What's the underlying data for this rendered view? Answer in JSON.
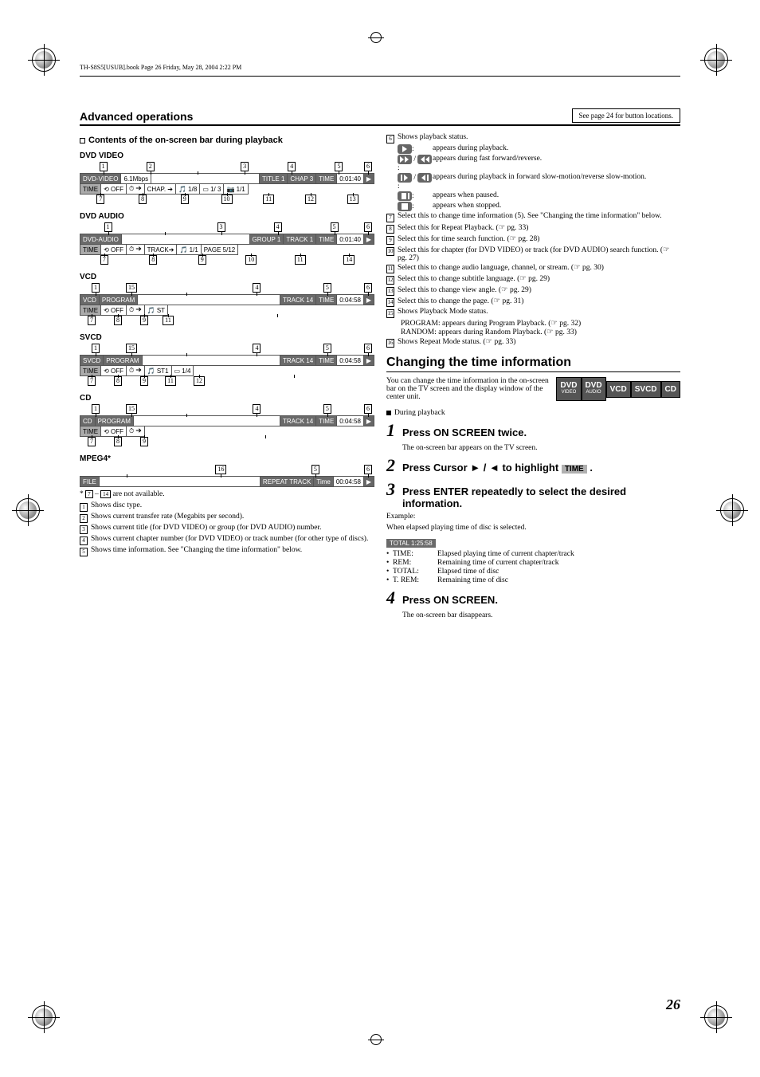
{
  "header_line": "TH-S8S5[USUB].book  Page 26  Friday, May 28, 2004  2:22 PM",
  "section_title": "Advanced operations",
  "button_note": "See page 24 for button locations.",
  "subsection_heading": "Contents of the on-screen bar during playback",
  "disc_labels": {
    "dvd_video": "DVD VIDEO",
    "dvd_audio": "DVD AUDIO",
    "vcd": "VCD",
    "svcd": "SVCD",
    "cd": "CD",
    "mpeg4": "MPEG4*"
  },
  "osd": {
    "dvd_video_top": {
      "c1": "1",
      "c2": "2",
      "c3": "3",
      "c4": "4",
      "c5": "5",
      "c6": "6"
    },
    "dvd_video_row1": {
      "type": "DVD-VIDEO",
      "rate": "6.1Mbps",
      "title": "TITLE  1",
      "chap": "CHAP  3",
      "label": "TIME",
      "time": "0:01:40"
    },
    "dvd_video_row2": {
      "time": "TIME",
      "repeat": "⟲ OFF",
      "clock": "⏱ ➔",
      "chapsel": "CHAP. ➔",
      "audio": "🎵 1/8",
      "sub": "▭ 1/  3",
      "angle": "📷 1/1"
    },
    "dvd_video_bot": {
      "c7": "7",
      "c8": "8",
      "c9": "9",
      "c10": "10",
      "c11": "11",
      "c12": "12",
      "c13": "13"
    },
    "dvd_audio_top": {
      "c1": "1",
      "c3": "3",
      "c4": "4",
      "c5": "5",
      "c6": "6"
    },
    "dvd_audio_row1": {
      "type": "DVD-AUDIO",
      "group": "GROUP 1",
      "track": "TRACK 1",
      "label": "TIME",
      "time": "0:01:40"
    },
    "dvd_audio_row2": {
      "time": "TIME",
      "repeat": "⟲ OFF",
      "clock": "⏱ ➔",
      "tracksel": "TRACK➔",
      "audio": "🎵 1/1",
      "page": "PAGE 5/12"
    },
    "dvd_audio_bot": {
      "c7": "7",
      "c8": "8",
      "c9": "9",
      "c10": "10",
      "c11": "11",
      "c14": "14"
    },
    "vcd_top": {
      "c1": "1",
      "c15": "15",
      "c4": "4",
      "c5": "5",
      "c6": "6"
    },
    "vcd_row1": {
      "type": "VCD",
      "program": "PROGRAM",
      "track": "TRACK 14",
      "label": "TIME",
      "time": "0:04:58"
    },
    "vcd_row2": {
      "time": "TIME",
      "repeat": "⟲ OFF",
      "clock": "⏱ ➔",
      "audio": "🎵 ST"
    },
    "vcd_bot": {
      "c7": "7",
      "c8": "8",
      "c9": "9",
      "c11": "11"
    },
    "svcd_top": {
      "c1": "1",
      "c15": "15",
      "c4": "4",
      "c5": "5",
      "c6": "6"
    },
    "svcd_row1": {
      "type": "SVCD",
      "program": "PROGRAM",
      "track": "TRACK 14",
      "label": "TIME",
      "time": "0:04:58"
    },
    "svcd_row2": {
      "time": "TIME",
      "repeat": "⟲ OFF",
      "clock": "⏱ ➔",
      "audio": "🎵 ST1",
      "sub": "▭   1/4"
    },
    "svcd_bot": {
      "c7": "7",
      "c8": "8",
      "c9": "9",
      "c11": "11",
      "c12": "12"
    },
    "cd_top": {
      "c1": "1",
      "c15": "15",
      "c4": "4",
      "c5": "5",
      "c6": "6"
    },
    "cd_row1": {
      "type": "CD",
      "program": "PROGRAM",
      "track": "TRACK 14",
      "label": "TIME",
      "time": "0:04:58"
    },
    "cd_row2": {
      "time": "TIME",
      "repeat": "⟲ OFF",
      "clock": "⏱ ➔"
    },
    "cd_bot": {
      "c7": "7",
      "c8": "8",
      "c9": "9"
    },
    "mpeg4_top": {
      "c16": "16",
      "c5": "5",
      "c6": "6"
    },
    "mpeg4_row1": {
      "type": "FILE",
      "repeat": "REPEAT TRACK",
      "label": "Time",
      "time": "00:04:58"
    }
  },
  "footnote_star": "*  ",
  "footnote_star_body": " are not available.",
  "footnote_star_nums_a": "7",
  "footnote_star_nums_dash": " – ",
  "footnote_star_nums_b": "14",
  "legend_left": [
    {
      "n": "1",
      "t": "Shows disc type."
    },
    {
      "n": "2",
      "t": "Shows current transfer rate (Megabits per second)."
    },
    {
      "n": "3",
      "t": "Shows current title (for DVD VIDEO) or group (for DVD AUDIO) number."
    },
    {
      "n": "4",
      "t": "Shows current chapter number (for DVD VIDEO) or track number (for other type of discs)."
    },
    {
      "n": "5",
      "t": "Shows time information. See \"Changing the time information\" below."
    }
  ],
  "legend_right_intro": {
    "n": "6",
    "t": "Shows playback status."
  },
  "status_lines": [
    {
      "icons": [
        "play"
      ],
      "t": "appears during playback."
    },
    {
      "icons": [
        "ff",
        "rw"
      ],
      "sep": " / ",
      "t": "appears during fast forward/reverse."
    },
    {
      "icons": [
        "slowf",
        "slowr"
      ],
      "sep": " / ",
      "t": "appears during playback in forward slow-motion/reverse slow-motion."
    },
    {
      "icons": [
        "pause"
      ],
      "t": "appears when paused."
    },
    {
      "icons": [
        "stop"
      ],
      "t": "appears when stopped."
    }
  ],
  "legend_right_rest": [
    {
      "n": "7",
      "t": "Select this to change time information (5). See \"Changing the time information\" below."
    },
    {
      "n": "8",
      "t": "Select this for Repeat Playback. (☞ pg. 33)"
    },
    {
      "n": "9",
      "t": "Select this for time search function. (☞ pg. 28)"
    },
    {
      "n": "10",
      "t": "Select this for chapter (for DVD VIDEO) or track (for DVD AUDIO) search function. (☞ pg. 27)"
    },
    {
      "n": "11",
      "t": "Select this to change audio language, channel, or stream. (☞ pg. 30)"
    },
    {
      "n": "12",
      "t": "Select this to change subtitle language. (☞ pg. 29)"
    },
    {
      "n": "13",
      "t": "Select this to change view angle. (☞ pg. 29)"
    },
    {
      "n": "14",
      "t": "Select this to change the page. (☞ pg. 31)"
    },
    {
      "n": "15",
      "t": "Shows Playback Mode status."
    },
    {
      "n": "16",
      "t": "Shows Repeat Mode status. (☞ pg. 33)"
    }
  ],
  "mode_sub": [
    "PROGRAM: appears during Program Playback. (☞ pg. 32)",
    "RANDOM:  appears during Random Playback. (☞ pg. 33)"
  ],
  "changing_heading": "Changing the time information",
  "badges": [
    {
      "main": "DVD",
      "sub": "VIDEO"
    },
    {
      "main": "DVD",
      "sub": "AUDIO"
    },
    {
      "main": "VCD"
    },
    {
      "main": "SVCD"
    },
    {
      "main": "CD"
    }
  ],
  "intro": "You can change the time information in the on-screen bar on the TV screen and the display window of the center unit.",
  "context": "During playback",
  "steps": [
    {
      "n": "1",
      "t": "Press ON SCREEN twice.",
      "d": "The on-screen bar appears on the TV screen."
    },
    {
      "n": "2",
      "t": "Press Cursor ► / ◄ to highlight ",
      "tag": "TIME",
      "tail": " ."
    },
    {
      "n": "3",
      "t": "Press ENTER repeatedly to select the desired information."
    },
    {
      "n": "4",
      "t": "Press ON SCREEN.",
      "d": "The on-screen bar disappears."
    }
  ],
  "example_label": "Example:",
  "example_desc": "When elapsed playing time of disc is selected.",
  "total_box": "TOTAL 1:25:58",
  "time_defs": [
    {
      "k": "TIME:",
      "v": "Elapsed playing time of current chapter/track"
    },
    {
      "k": "REM:",
      "v": "Remaining time of current chapter/track"
    },
    {
      "k": "TOTAL:",
      "v": "Elapsed time of disc"
    },
    {
      "k": "T. REM:",
      "v": "Remaining time of disc"
    }
  ],
  "page_number": "26"
}
